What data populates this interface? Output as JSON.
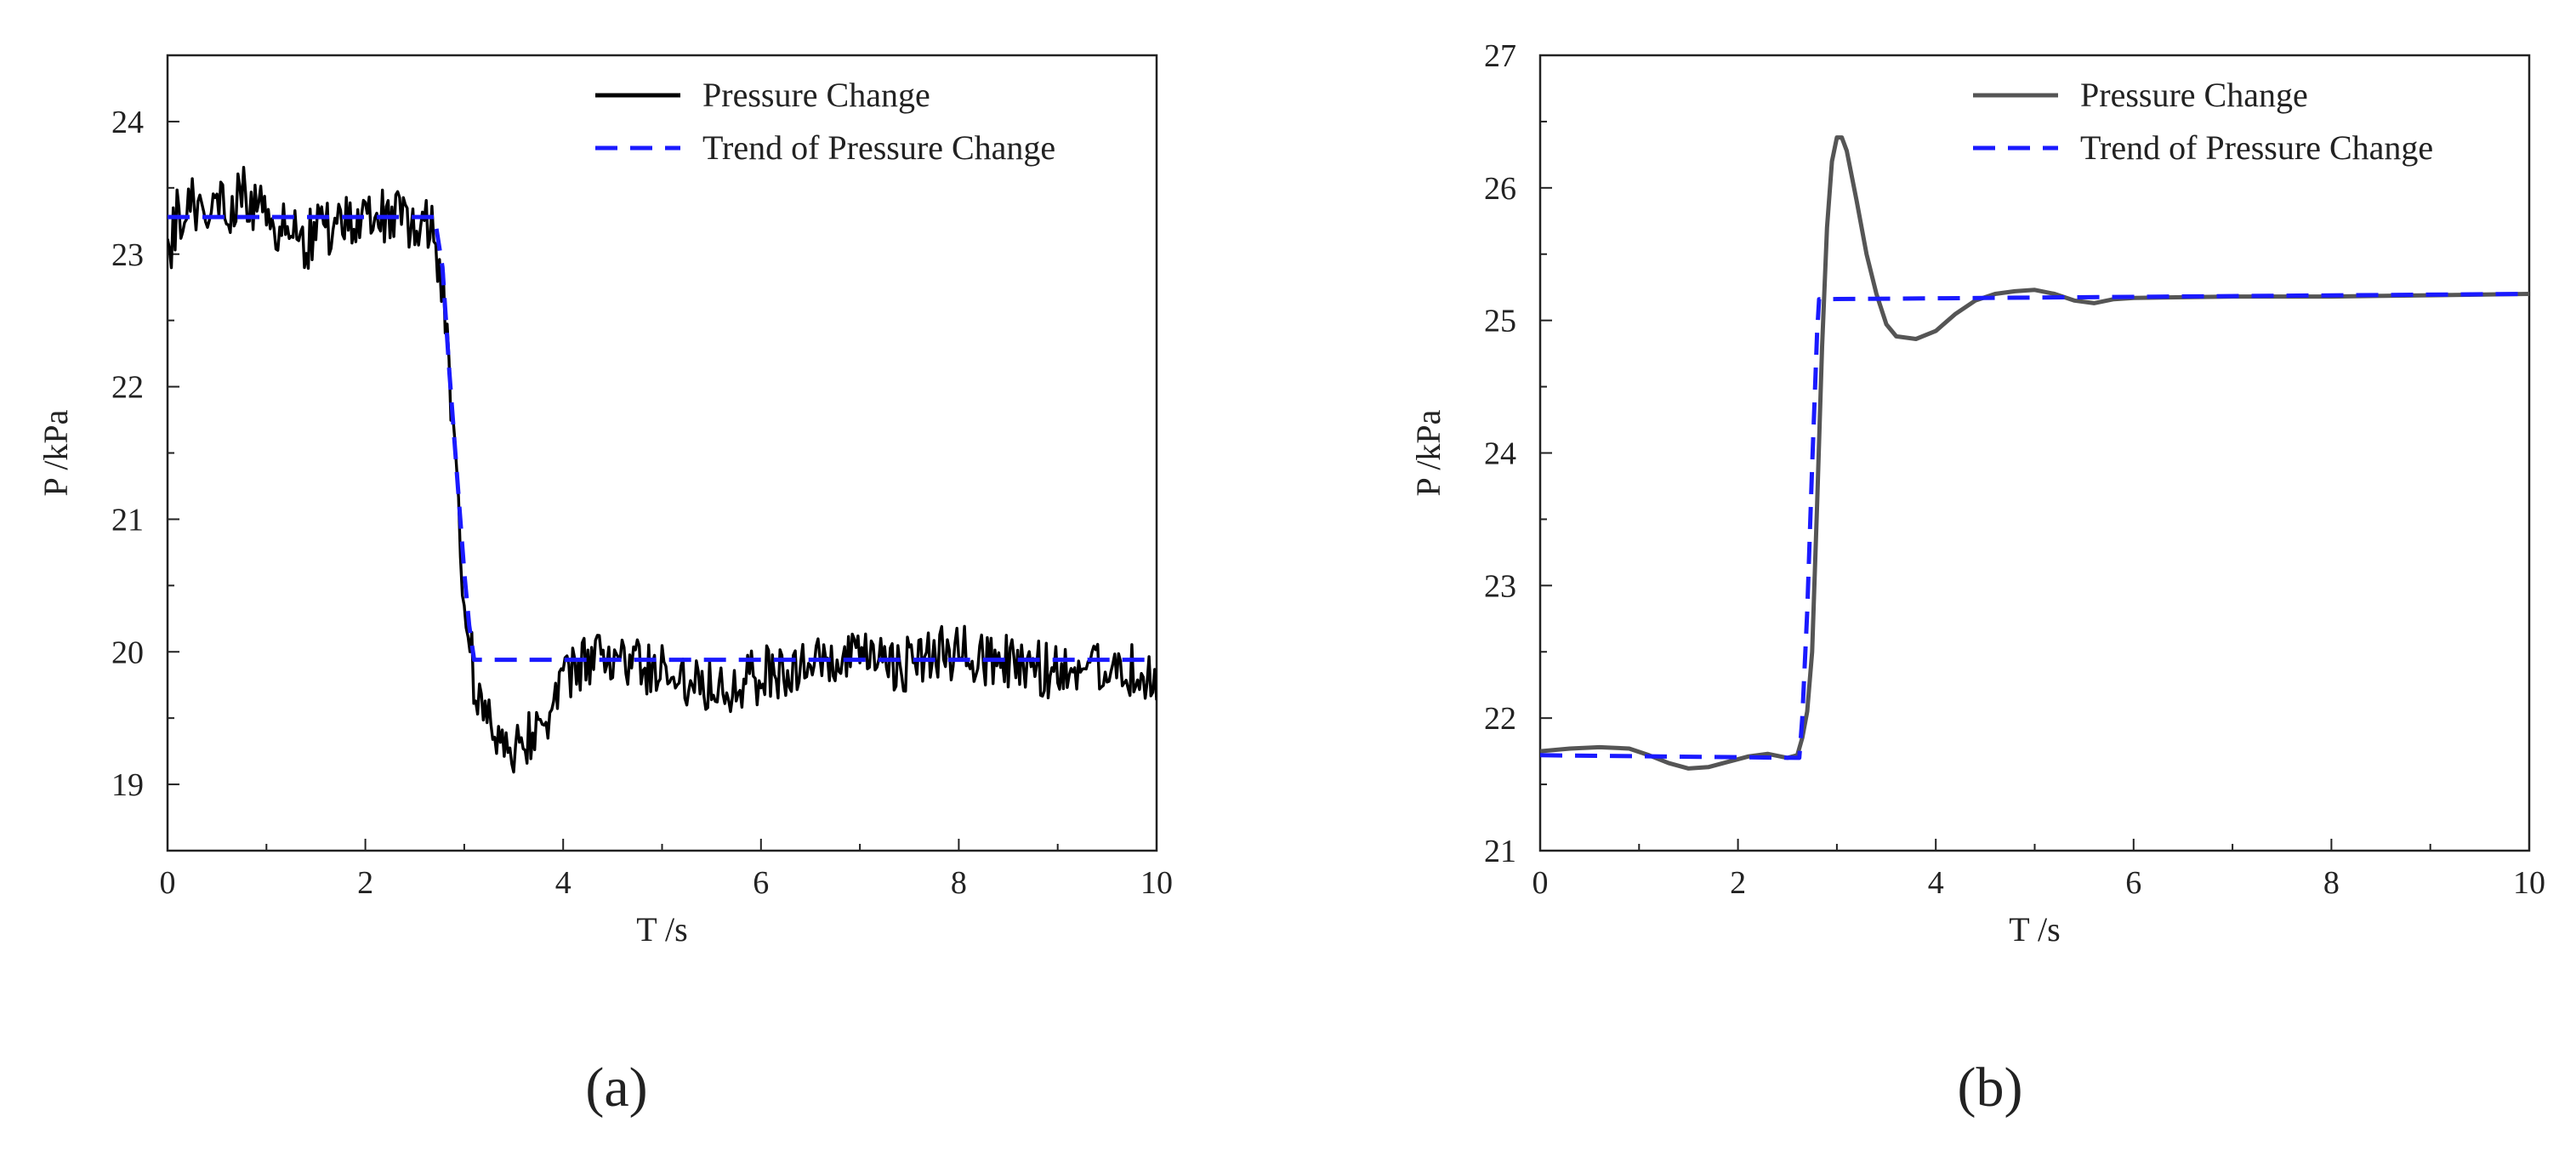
{
  "figure": {
    "panel_labels": [
      "(a)",
      "(b)"
    ]
  },
  "chart_data": [
    {
      "type": "line",
      "panel": "(a)",
      "xlabel": "T /s",
      "ylabel": "P /kPa",
      "xlim": [
        0,
        10
      ],
      "ylim": [
        18.5,
        24.5
      ],
      "xticks": [
        0,
        2,
        4,
        6,
        8,
        10
      ],
      "yticks": [
        19,
        20,
        21,
        22,
        23,
        24
      ],
      "grid": false,
      "legend_position": "top-right",
      "series": [
        {
          "name": "Pressure Change",
          "style": "solid",
          "color": "#000000",
          "noisy": true,
          "noise_amplitude": 0.22,
          "x": [
            0,
            0.05,
            0.1,
            0.2,
            0.4,
            0.6,
            0.8,
            1.0,
            1.2,
            1.4,
            1.6,
            1.8,
            2.0,
            2.2,
            2.4,
            2.6,
            2.7,
            2.8,
            2.9,
            3.0,
            3.1,
            3.2,
            3.3,
            3.5,
            3.7,
            3.9,
            4.1,
            4.3,
            4.5,
            4.7,
            5.0,
            5.3,
            5.6,
            5.9,
            6.2,
            6.5,
            6.8,
            7.1,
            7.4,
            7.7,
            8.0,
            8.3,
            8.6,
            8.9,
            9.2,
            9.5,
            9.8,
            10.0
          ],
          "y": [
            22.9,
            23.1,
            23.3,
            23.35,
            23.4,
            23.35,
            23.45,
            23.3,
            23.15,
            23.1,
            23.2,
            23.25,
            23.2,
            23.3,
            23.25,
            23.3,
            23.1,
            22.6,
            21.6,
            20.4,
            19.8,
            19.5,
            19.4,
            19.3,
            19.4,
            19.6,
            19.85,
            19.95,
            19.95,
            19.9,
            19.85,
            19.8,
            19.75,
            19.8,
            19.85,
            19.9,
            19.9,
            19.95,
            19.9,
            19.95,
            20.0,
            19.95,
            19.9,
            19.85,
            19.9,
            19.9,
            19.85,
            19.75
          ]
        },
        {
          "name": "Trend of Pressure Change",
          "style": "dashed",
          "color": "#1a1aff",
          "x": [
            0,
            2.7,
            2.78,
            2.85,
            2.92,
            3.0,
            3.05,
            3.1,
            10
          ],
          "y": [
            23.28,
            23.28,
            22.9,
            22.1,
            21.4,
            20.6,
            20.2,
            19.94,
            19.94
          ]
        }
      ]
    },
    {
      "type": "line",
      "panel": "(b)",
      "xlabel": "T /s",
      "ylabel": "P /kPa",
      "xlim": [
        0,
        10
      ],
      "ylim": [
        21,
        27
      ],
      "xticks": [
        0,
        2,
        4,
        6,
        8,
        10
      ],
      "yticks": [
        21,
        22,
        23,
        24,
        25,
        26,
        27
      ],
      "grid": false,
      "legend_position": "top-right",
      "series": [
        {
          "name": "Pressure Change",
          "style": "solid",
          "color": "#555555",
          "noisy": false,
          "x": [
            0,
            0.3,
            0.6,
            0.9,
            1.1,
            1.3,
            1.5,
            1.7,
            1.9,
            2.1,
            2.3,
            2.5,
            2.6,
            2.65,
            2.7,
            2.75,
            2.8,
            2.85,
            2.9,
            2.95,
            3.0,
            3.05,
            3.1,
            3.2,
            3.3,
            3.4,
            3.5,
            3.6,
            3.8,
            4.0,
            4.2,
            4.4,
            4.6,
            4.8,
            5.0,
            5.2,
            5.4,
            5.6,
            5.8,
            6.0,
            7.0,
            8.0,
            9.0,
            10.0
          ],
          "y": [
            21.75,
            21.77,
            21.78,
            21.77,
            21.72,
            21.66,
            21.62,
            21.63,
            21.67,
            21.71,
            21.73,
            21.7,
            21.72,
            21.85,
            22.05,
            22.5,
            23.6,
            24.8,
            25.7,
            26.2,
            26.38,
            26.38,
            26.28,
            25.9,
            25.5,
            25.2,
            24.97,
            24.88,
            24.86,
            24.92,
            25.05,
            25.15,
            25.2,
            25.22,
            25.23,
            25.2,
            25.15,
            25.13,
            25.16,
            25.17,
            25.18,
            25.18,
            25.19,
            25.2
          ]
        },
        {
          "name": "Trend of Pressure Change",
          "style": "dashed",
          "color": "#1a1aff",
          "x": [
            0,
            2.62,
            2.65,
            2.7,
            2.75,
            2.8,
            2.82,
            10
          ],
          "y": [
            21.72,
            21.7,
            22.0,
            22.8,
            23.9,
            24.9,
            25.16,
            25.2
          ]
        }
      ]
    }
  ]
}
